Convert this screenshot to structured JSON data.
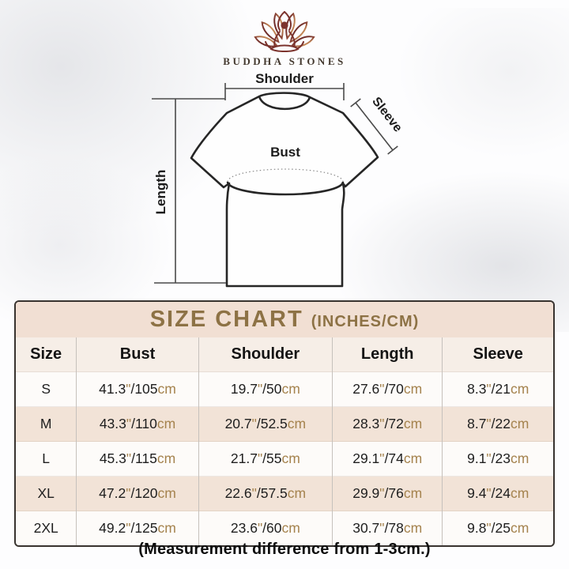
{
  "brand": {
    "name": "BUDDHA STONES"
  },
  "diagram": {
    "labels": {
      "shoulder": "Shoulder",
      "sleeve": "Sleeve",
      "bust": "Bust",
      "length": "Length"
    }
  },
  "size_chart": {
    "title": "SIZE CHART",
    "subtitle": "(INCHES/CM)",
    "columns": [
      "Size",
      "Bust",
      "Shoulder",
      "Length",
      "Sleeve"
    ],
    "units": {
      "inch_mark": "\"",
      "separator": "/",
      "cm_suffix": "cm"
    },
    "rows": [
      {
        "size": "S",
        "bust": {
          "in": "41.3",
          "cm": "105"
        },
        "shoulder": {
          "in": "19.7",
          "cm": "50"
        },
        "length": {
          "in": "27.6",
          "cm": "70"
        },
        "sleeve": {
          "in": "8.3",
          "cm": "21"
        }
      },
      {
        "size": "M",
        "bust": {
          "in": "43.3",
          "cm": "110"
        },
        "shoulder": {
          "in": "20.7",
          "cm": "52.5"
        },
        "length": {
          "in": "28.3",
          "cm": "72"
        },
        "sleeve": {
          "in": "8.7",
          "cm": "22"
        }
      },
      {
        "size": "L",
        "bust": {
          "in": "45.3",
          "cm": "115"
        },
        "shoulder": {
          "in": "21.7",
          "cm": "55"
        },
        "length": {
          "in": "29.1",
          "cm": "74"
        },
        "sleeve": {
          "in": "9.1",
          "cm": "23"
        }
      },
      {
        "size": "XL",
        "bust": {
          "in": "47.2",
          "cm": "120"
        },
        "shoulder": {
          "in": "22.6",
          "cm": "57.5"
        },
        "length": {
          "in": "29.9",
          "cm": "76"
        },
        "sleeve": {
          "in": "9.4",
          "cm": "24"
        }
      },
      {
        "size": "2XL",
        "bust": {
          "in": "49.2",
          "cm": "125"
        },
        "shoulder": {
          "in": "23.6",
          "cm": "60"
        },
        "length": {
          "in": "30.7",
          "cm": "78"
        },
        "sleeve": {
          "in": "9.8",
          "cm": "25"
        }
      }
    ]
  },
  "footer": {
    "note": "(Measurement difference from 1-3cm.)"
  },
  "colors": {
    "title_text": "#8d7245",
    "title_band": "#f1dfd3",
    "row_beige": "#f2e3d7",
    "unit_text": "#a5834e",
    "table_border": "#38332f",
    "logo_dark": "#6f2d2a",
    "logo_light": "#c58a58"
  }
}
